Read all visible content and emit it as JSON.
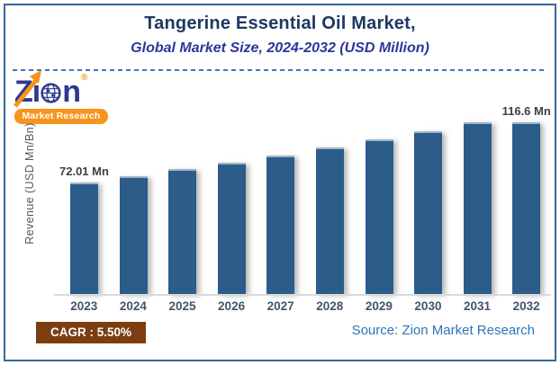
{
  "chart_data": {
    "type": "bar",
    "title": "Tangerine Essential Oil Market,",
    "subtitle": "Global Market Size, 2024-2032 (USD Million)",
    "ylabel": "Revenue (USD Mn/Bn)",
    "xlabel": "",
    "categories": [
      "2023",
      "2024",
      "2025",
      "2026",
      "2027",
      "2028",
      "2029",
      "2030",
      "2031",
      "2032"
    ],
    "series": [
      {
        "name": "Global Market Size (USD Mn)",
        "values": [
          72.01,
          75.97,
          80.15,
          84.56,
          89.21,
          94.11,
          99.29,
          104.75,
          110.51,
          116.6
        ]
      }
    ],
    "point_labels": [
      "72.01 Mn",
      "",
      "",
      "",
      "",
      "",
      "",
      "",
      "",
      "116.6 Mn"
    ],
    "ylim": [
      0,
      122
    ],
    "grid": false,
    "legend": "none",
    "bar_color": "#2B5C8A"
  },
  "logo": {
    "letter_z": "Z",
    "letter_i": "i",
    "letter_n": "n",
    "registered_mark": "®",
    "tagline": "Market Research"
  },
  "footer": {
    "cagr": "CAGR :  5.50%",
    "source": "Source: Zion Market Research"
  },
  "colors": {
    "bar": "#2B5C8A",
    "border_frame": "#35689A",
    "title_text": "#1F3864",
    "subtitle_text": "#2F3699",
    "brand_blue": "#2B3990",
    "brand_orange": "#F7941D",
    "cagr_background": "#7C3E10",
    "cagr_text": "#FFFFFF",
    "source_text": "#2E74B5",
    "axis_line": "#D9D9D9",
    "year_label_text": "#44546A",
    "data_label_text": "#3F3F3F",
    "dashed_divider": "#4472C4"
  }
}
